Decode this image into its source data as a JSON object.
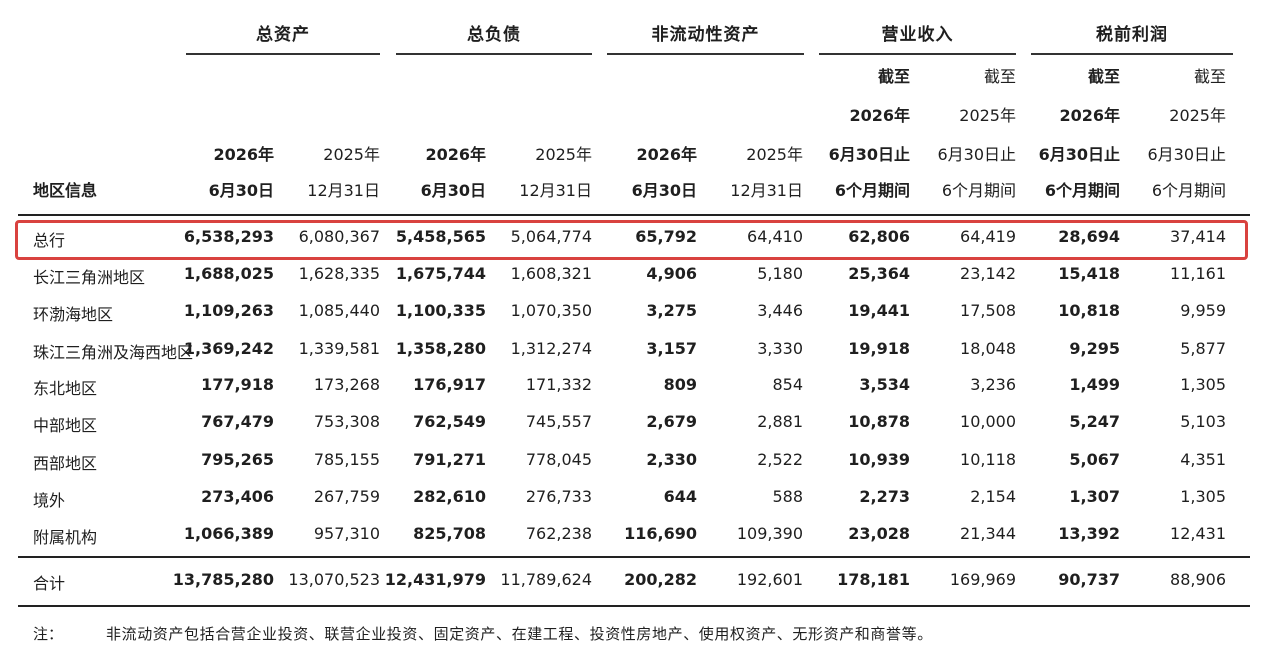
{
  "groups": [
    "总资产",
    "总负债",
    "非流动性资产",
    "营业收入",
    "税前利润"
  ],
  "corner_label": "地区信息",
  "headers": {
    "total_assets": [
      [
        "2026年",
        "6月30日"
      ],
      [
        "2025年",
        "12月31日"
      ]
    ],
    "total_liabilities": [
      [
        "2026年",
        "6月30日"
      ],
      [
        "2025年",
        "12月31日"
      ]
    ],
    "non_current_assets": [
      [
        "2026年",
        "6月30日"
      ],
      [
        "2025年",
        "12月31日"
      ]
    ],
    "revenue": [
      [
        "截至",
        "2026年",
        "6月30日止",
        "6个月期间"
      ],
      [
        "截至",
        "2025年",
        "6月30日止",
        "6个月期间"
      ]
    ],
    "pretax_profit": [
      [
        "截至",
        "2026年",
        "6月30日止",
        "6个月期间"
      ],
      [
        "截至",
        "2025年",
        "6月30日止",
        "6个月期间"
      ]
    ]
  },
  "rows": [
    {
      "region": "总行",
      "values": [
        "6,538,293",
        "6,080,367",
        "5,458,565",
        "5,064,774",
        "65,792",
        "64,410",
        "62,806",
        "64,419",
        "28,694",
        "37,414"
      ]
    },
    {
      "region": "长江三角洲地区",
      "values": [
        "1,688,025",
        "1,628,335",
        "1,675,744",
        "1,608,321",
        "4,906",
        "5,180",
        "25,364",
        "23,142",
        "15,418",
        "11,161"
      ]
    },
    {
      "region": "环渤海地区",
      "values": [
        "1,109,263",
        "1,085,440",
        "1,100,335",
        "1,070,350",
        "3,275",
        "3,446",
        "19,441",
        "17,508",
        "10,818",
        "9,959"
      ]
    },
    {
      "region": "珠江三角洲及海西地区",
      "values": [
        "1,369,242",
        "1,339,581",
        "1,358,280",
        "1,312,274",
        "3,157",
        "3,330",
        "19,918",
        "18,048",
        "9,295",
        "5,877"
      ]
    },
    {
      "region": "东北地区",
      "values": [
        "177,918",
        "173,268",
        "176,917",
        "171,332",
        "809",
        "854",
        "3,534",
        "3,236",
        "1,499",
        "1,305"
      ]
    },
    {
      "region": "中部地区",
      "values": [
        "767,479",
        "753,308",
        "762,549",
        "745,557",
        "2,679",
        "2,881",
        "10,878",
        "10,000",
        "5,247",
        "5,103"
      ]
    },
    {
      "region": "西部地区",
      "values": [
        "795,265",
        "785,155",
        "791,271",
        "778,045",
        "2,330",
        "2,522",
        "10,939",
        "10,118",
        "5,067",
        "4,351"
      ]
    },
    {
      "region": "境外",
      "values": [
        "273,406",
        "267,759",
        "282,610",
        "276,733",
        "644",
        "588",
        "2,273",
        "2,154",
        "1,307",
        "1,305"
      ]
    },
    {
      "region": "附属机构",
      "values": [
        "1,066,389",
        "957,310",
        "825,708",
        "762,238",
        "116,690",
        "109,390",
        "23,028",
        "21,344",
        "13,392",
        "12,431"
      ]
    }
  ],
  "total": {
    "region": "合计",
    "values": [
      "13,785,280",
      "13,070,523",
      "12,431,979",
      "11,789,624",
      "200,282",
      "192,601",
      "178,181",
      "169,969",
      "90,737",
      "88,906"
    ]
  },
  "note": {
    "label": "注：",
    "text": "非流动资产包括合营企业投资、联营企业投资、固定资产、在建工程、投资性房地产、使用权资产、无形资产和商誉等。"
  },
  "highlight_color": "#d9423f"
}
